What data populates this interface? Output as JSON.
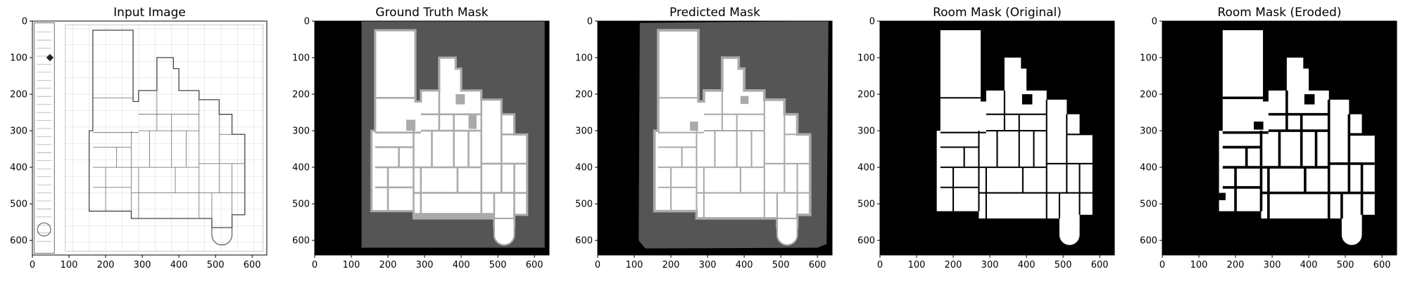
{
  "figure": {
    "panels": [
      {
        "id": "input",
        "title": "Input Image"
      },
      {
        "id": "gt",
        "title": "Ground Truth Mask"
      },
      {
        "id": "pred",
        "title": "Predicted Mask"
      },
      {
        "id": "room",
        "title": "Room Mask (Original)"
      },
      {
        "id": "eroded",
        "title": "Room Mask (Eroded)"
      }
    ],
    "axes": {
      "x_ticks": [
        "0",
        "100",
        "200",
        "300",
        "400",
        "500",
        "600"
      ],
      "y_ticks": [
        "0",
        "100",
        "200",
        "300",
        "400",
        "500",
        "600"
      ],
      "xlim": [
        0,
        640
      ],
      "ylim": [
        640,
        0
      ]
    },
    "colors": {
      "background_dark": "#000000",
      "exterior_gray": "#555555",
      "room_white": "#ffffff",
      "wall_gray": "#aaaaaa",
      "plan_line": "#444444"
    }
  }
}
